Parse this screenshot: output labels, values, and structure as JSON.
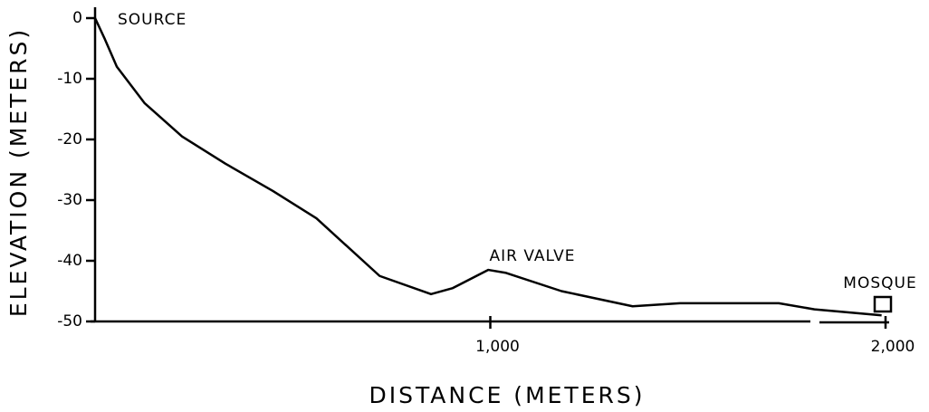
{
  "chart_data": {
    "type": "line",
    "x": [
      0,
      25,
      55,
      125,
      220,
      330,
      450,
      560,
      720,
      850,
      905,
      995,
      1040,
      1180,
      1360,
      1480,
      1730,
      1820,
      1990
    ],
    "values": [
      0,
      -3.5,
      -8,
      -14,
      -19.5,
      -24,
      -28.5,
      -33,
      -42.5,
      -45.5,
      -44.5,
      -41.5,
      -42,
      -45,
      -47.5,
      -47,
      -47,
      -48,
      -49
    ],
    "color": "#000000",
    "xlim": [
      0,
      2000
    ],
    "xticks": [
      {
        "value": 1000,
        "label": "1,000"
      },
      {
        "value": 2000,
        "label": "2,000"
      }
    ],
    "ylim": [
      -50,
      0
    ],
    "yticks": [
      0,
      -10,
      -20,
      -30,
      -40,
      -50
    ],
    "xlabel": "DISTANCE (METERS)",
    "ylabel": "ELEVATION (METERS)",
    "annotations": [
      {
        "text": "SOURCE"
      },
      {
        "text": "AIR VALVE"
      },
      {
        "text": "MOSQUE"
      }
    ]
  }
}
